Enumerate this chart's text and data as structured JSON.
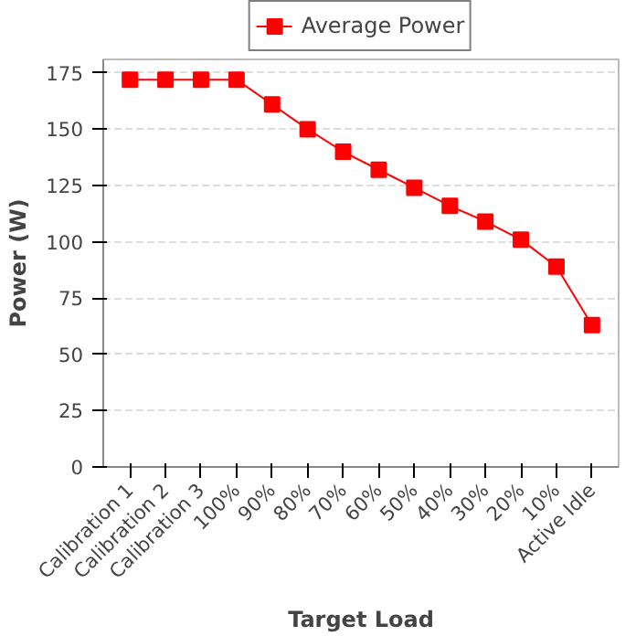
{
  "chart_data": {
    "type": "line",
    "xlabel": "Target Load",
    "ylabel": "Power (W)",
    "categories": [
      "Calibration 1",
      "Calibration 2",
      "Calibration 3",
      "100%",
      "90%",
      "80%",
      "70%",
      "60%",
      "50%",
      "40%",
      "30%",
      "20%",
      "10%",
      "Active Idle"
    ],
    "series": [
      {
        "name": "Average Power",
        "color": "#ff0000",
        "values": [
          172,
          172,
          172,
          172,
          161,
          150,
          140,
          132,
          124,
          116,
          109,
          101,
          89,
          63
        ]
      }
    ],
    "ylim": [
      0,
      181
    ],
    "yticks": [
      0,
      25,
      50,
      75,
      100,
      125,
      150,
      175
    ],
    "grid": "y",
    "legend": "top",
    "marker": "square",
    "line_style": "solid"
  }
}
